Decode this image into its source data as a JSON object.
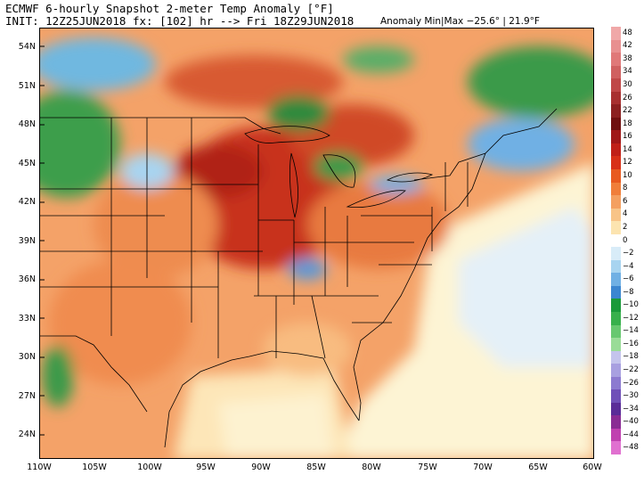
{
  "header": {
    "title": "ECMWF 6-hourly Snapshot 2-meter Temp Anomaly [°F]",
    "init_line": "INIT: 12Z25JUN2018 fx: [102] hr --> Fri 18Z29JUN2018",
    "anomaly_range": "Anomaly Min|Max −25.6° | 21.9°F"
  },
  "map": {
    "region": "Eastern United States and southeastern Canada",
    "lat_labels": [
      "54N",
      "51N",
      "48N",
      "45N",
      "42N",
      "39N",
      "36N",
      "33N",
      "30N",
      "27N",
      "24N"
    ],
    "lon_labels": [
      "110W",
      "105W",
      "100W",
      "95W",
      "90W",
      "85W",
      "80W",
      "75W",
      "70W",
      "65W",
      "60W"
    ],
    "features": [
      "warm-anomaly-midwest",
      "cool-anomaly-northern-plains",
      "cool-anomaly-great-lakes",
      "near-normal-atlantic"
    ]
  },
  "colorbar": {
    "labels": [
      "48",
      "42",
      "38",
      "34",
      "30",
      "26",
      "22",
      "18",
      "16",
      "14",
      "12",
      "10",
      "8",
      "6",
      "4",
      "2",
      "0",
      "−2",
      "−4",
      "−6",
      "−8",
      "−10",
      "−12",
      "−14",
      "−16",
      "−18",
      "−22",
      "−26",
      "−30",
      "−34",
      "−40",
      "−44",
      "−48"
    ],
    "colors": [
      "#f0a8a8",
      "#e89090",
      "#e07878",
      "#d06060",
      "#c04848",
      "#a83030",
      "#8c2020",
      "#701010",
      "#a01818",
      "#c02018",
      "#d83018",
      "#e85a20",
      "#f07e3a",
      "#f4a060",
      "#f8c488",
      "#fce4b0",
      "#ffffff",
      "#d8ecf8",
      "#a8d4f0",
      "#70b0e4",
      "#3c86d0",
      "#1a9a3a",
      "#38b04c",
      "#68c870",
      "#9adc98",
      "#c4c4ec",
      "#a8a0e0",
      "#8c7ad0",
      "#7050b8",
      "#5a2c98",
      "#8a2c94",
      "#c040b0",
      "#e070d0"
    ]
  }
}
